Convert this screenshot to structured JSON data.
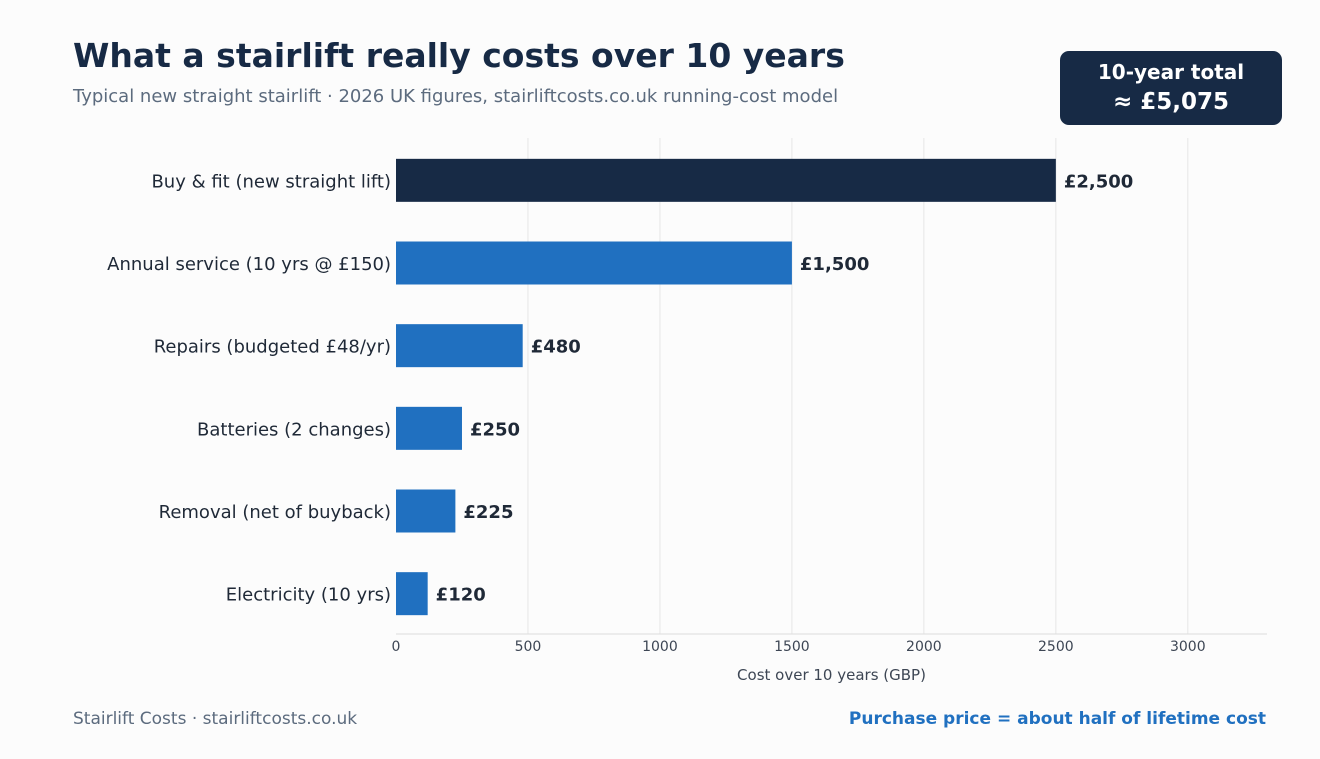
{
  "header": {
    "title": "What a stairlift really costs over 10 years",
    "subtitle": "Typical new straight stairlift  ·  2026 UK figures, stairliftcosts.co.uk running-cost model"
  },
  "badge": {
    "label": "10-year total",
    "value": "≈ £5,075"
  },
  "footer": {
    "source": "Stairlift Costs  ·  stairliftcosts.co.uk",
    "note": "Purchase price = about half of lifetime cost"
  },
  "colors": {
    "highlight": "#172a45",
    "bar": "#2070c0",
    "grid": "#e6e6e6",
    "label": "#1f2937"
  },
  "chart_data": {
    "type": "bar",
    "orientation": "horizontal",
    "categories": [
      "Buy & fit (new straight lift)",
      "Annual service (10 yrs @ £150)",
      "Repairs (budgeted £48/yr)",
      "Batteries (2 changes)",
      "Removal (net of buyback)",
      "Electricity (10 yrs)"
    ],
    "values": [
      2500,
      1500,
      480,
      250,
      225,
      120
    ],
    "value_labels": [
      "£2,500",
      "£1,500",
      "£480",
      "£250",
      "£225",
      "£120"
    ],
    "highlight_index": 0,
    "xlabel": "Cost over 10 years (GBP)",
    "xticks": [
      0,
      500,
      1000,
      1500,
      2000,
      2500,
      3000
    ],
    "xticklabels": [
      "0",
      "500",
      "1000",
      "1500",
      "2000",
      "2500",
      "3000"
    ],
    "xlim": [
      0,
      3300
    ],
    "grid": "vertical"
  }
}
